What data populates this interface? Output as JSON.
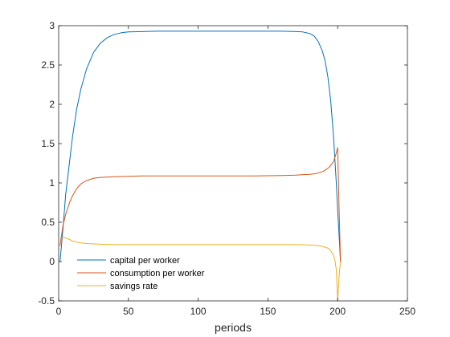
{
  "chart_data": {
    "type": "line",
    "title": "",
    "xlabel": "periods",
    "ylabel": "",
    "xlim": [
      0,
      250
    ],
    "ylim": [
      -0.5,
      3
    ],
    "xticks": [
      0,
      50,
      100,
      150,
      200,
      250
    ],
    "xtick_labels": [
      "0",
      "50",
      "100",
      "150",
      "200",
      "250"
    ],
    "yticks": [
      -0.5,
      0,
      0.5,
      1,
      1.5,
      2,
      2.5,
      3
    ],
    "ytick_labels": [
      "-0.5",
      "0",
      "0.5",
      "1",
      "1.5",
      "2",
      "2.5",
      "3"
    ],
    "grid": false,
    "legend_position": "bottom-left",
    "series": [
      {
        "name": "capital per worker",
        "color": "#0072BD",
        "x": [
          1,
          3,
          5,
          8,
          10,
          13,
          16,
          20,
          25,
          30,
          35,
          40,
          45,
          50,
          60,
          70,
          80,
          100,
          120,
          140,
          160,
          170,
          175,
          180,
          183,
          186,
          189,
          191,
          193,
          195,
          197,
          199,
          200,
          201,
          202
        ],
        "y": [
          0.0,
          0.4,
          0.85,
          1.3,
          1.6,
          1.95,
          2.2,
          2.45,
          2.66,
          2.78,
          2.85,
          2.89,
          2.91,
          2.92,
          2.925,
          2.93,
          2.93,
          2.93,
          2.93,
          2.93,
          2.93,
          2.925,
          2.92,
          2.9,
          2.87,
          2.8,
          2.68,
          2.55,
          2.35,
          2.05,
          1.6,
          1.0,
          0.65,
          0.35,
          0.0
        ]
      },
      {
        "name": "consumption per worker",
        "color": "#D95319",
        "x": [
          1,
          3,
          5,
          8,
          10,
          13,
          16,
          20,
          25,
          30,
          40,
          50,
          60,
          80,
          100,
          120,
          140,
          160,
          170,
          180,
          185,
          190,
          194,
          197,
          199,
          200,
          201,
          202
        ],
        "y": [
          0.2,
          0.45,
          0.6,
          0.76,
          0.84,
          0.93,
          0.99,
          1.03,
          1.06,
          1.07,
          1.08,
          1.085,
          1.09,
          1.09,
          1.09,
          1.09,
          1.09,
          1.095,
          1.1,
          1.11,
          1.12,
          1.15,
          1.2,
          1.27,
          1.38,
          1.45,
          0.7,
          0.0
        ]
      },
      {
        "name": "savings rate",
        "color": "#EDB120",
        "x": [
          1,
          3,
          5,
          8,
          10,
          15,
          20,
          30,
          40,
          50,
          80,
          100,
          120,
          150,
          170,
          180,
          185,
          190,
          193,
          195,
          197,
          198,
          199,
          200,
          201,
          202
        ],
        "y": [
          0.3,
          0.31,
          0.3,
          0.28,
          0.26,
          0.24,
          0.23,
          0.22,
          0.215,
          0.215,
          0.215,
          0.215,
          0.215,
          0.215,
          0.215,
          0.21,
          0.205,
          0.19,
          0.17,
          0.14,
          0.08,
          0.02,
          -0.1,
          -0.5,
          -0.2,
          0.0
        ]
      }
    ]
  }
}
